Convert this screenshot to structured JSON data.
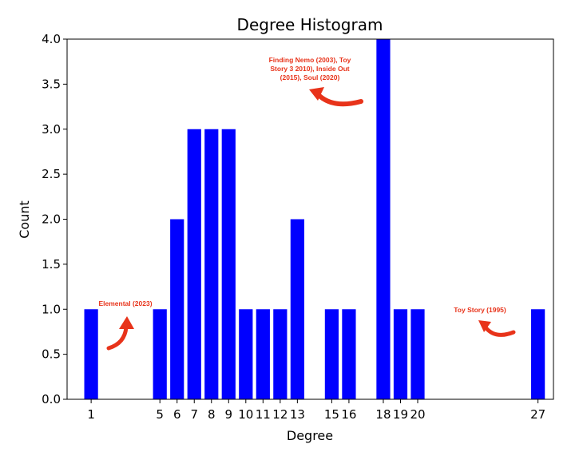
{
  "chart_data": {
    "type": "bar",
    "title": "Degree Histogram",
    "xlabel": "Degree",
    "ylabel": "Count",
    "ylim": [
      0,
      4
    ],
    "yticks": [
      "0.0",
      "0.5",
      "1.0",
      "1.5",
      "2.0",
      "2.5",
      "3.0",
      "3.5",
      "4.0"
    ],
    "xlim": [
      -0.4,
      27.9
    ],
    "x": [
      1,
      5,
      6,
      7,
      8,
      9,
      10,
      11,
      12,
      13,
      15,
      16,
      18,
      19,
      20,
      27
    ],
    "values": [
      1,
      1,
      2,
      3,
      3,
      3,
      1,
      1,
      1,
      2,
      1,
      1,
      4,
      1,
      1,
      1
    ],
    "xticks": [
      1,
      5,
      6,
      7,
      8,
      9,
      10,
      11,
      12,
      13,
      15,
      16,
      18,
      19,
      20,
      27
    ],
    "bar_color": "#0000ff",
    "grid": false,
    "annotations": [
      {
        "lines": [
          "Elemental (2023)"
        ],
        "color": "#e8331a",
        "arrow": "curved-up"
      },
      {
        "lines": [
          "Finding Nemo (2003), Toy",
          "Story 3 2010), Inside Out",
          "(2015), Soul (2020)"
        ],
        "color": "#e8331a",
        "arrow": "curved-left"
      },
      {
        "lines": [
          "Toy Story (1995)"
        ],
        "color": "#e8331a",
        "arrow": "curved-left"
      }
    ]
  }
}
